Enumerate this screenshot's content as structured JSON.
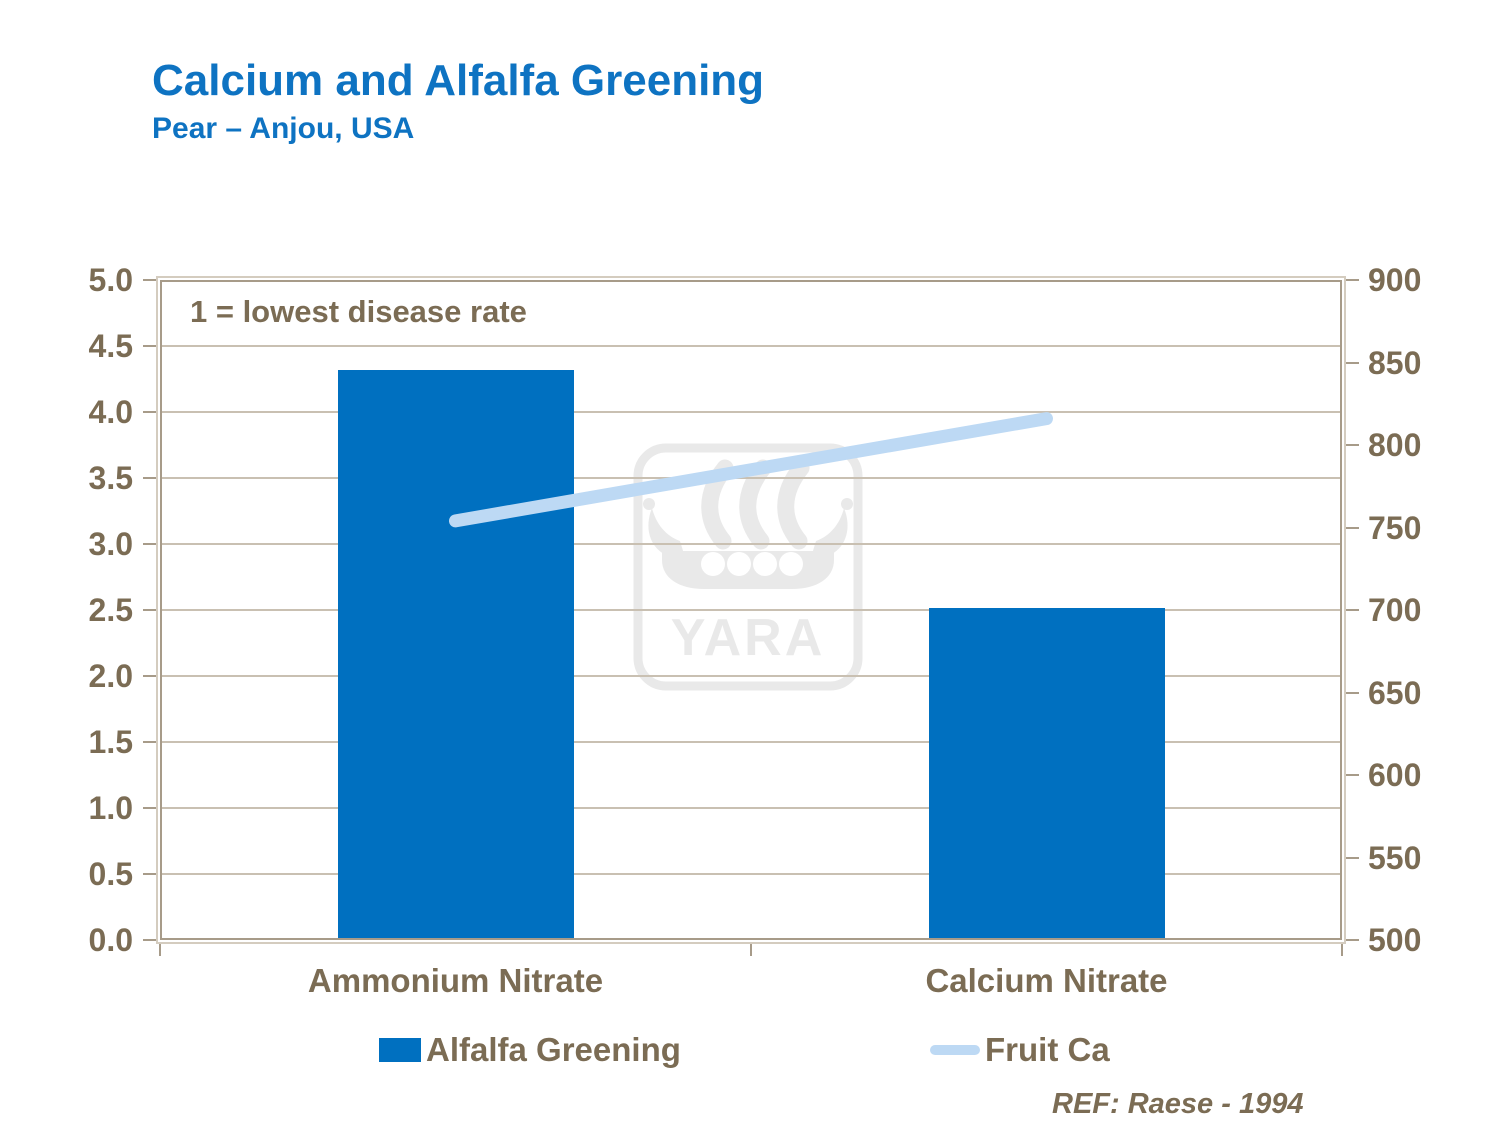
{
  "title": "Calcium and Alfalfa Greening",
  "subtitle": "Pear – Anjou, USA",
  "reference": "REF: Raese - 1994",
  "watermark": "YARA",
  "colors": {
    "title_blue": "#0E73C2",
    "bar_blue": "#0070C0",
    "line_light_blue": "#BDD9F4",
    "text_brown": "#7B6C54",
    "gridline": "#C9C0B2",
    "frame": "#A79B89",
    "watermark_gray": "#E9E9E9"
  },
  "chart_data": {
    "type": "bar",
    "categories": [
      "Ammonium Nitrate",
      "Calcium Nitrate"
    ],
    "series": [
      {
        "name": "Alfalfa Greening",
        "type": "bar",
        "axis": "left",
        "values": [
          4.3,
          2.5
        ],
        "color": "#0070C0"
      },
      {
        "name": "Fruit Ca",
        "type": "line",
        "axis": "right",
        "values": [
          754,
          816
        ],
        "color": "#BDD9F4"
      }
    ],
    "left_axis": {
      "min": 0.0,
      "max": 5.0,
      "step": 0.5,
      "tick_labels": [
        "5.0",
        "4.5",
        "4.0",
        "3.5",
        "3.0",
        "2.5",
        "2.0",
        "1.5",
        "1.0",
        "0.5",
        "0.0"
      ]
    },
    "right_axis": {
      "min": 500,
      "max": 900,
      "step": 50,
      "tick_labels": [
        "900",
        "850",
        "800",
        "750",
        "700",
        "650",
        "600",
        "550",
        "500"
      ]
    },
    "annotation": "1 = lowest disease rate",
    "grid": true,
    "legend_position": "bottom"
  }
}
